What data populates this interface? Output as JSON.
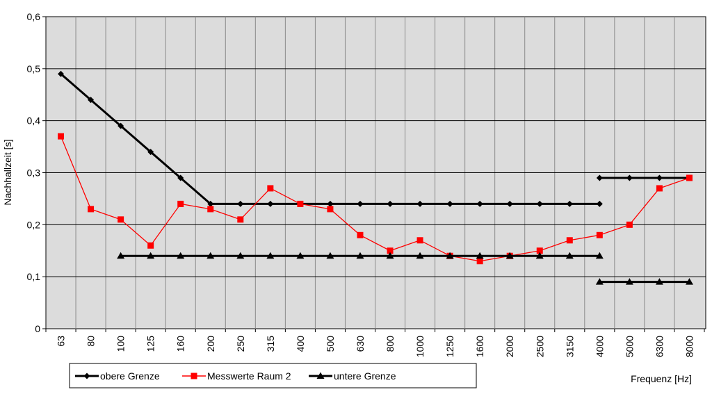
{
  "chart_data": {
    "type": "line",
    "ylabel": "Nachhallzeit [s]",
    "xlabel": "Frequenz [Hz]",
    "ylim": [
      0,
      0.6
    ],
    "yticks": [
      "0",
      "0,1",
      "0,2",
      "0,3",
      "0,4",
      "0,5",
      "0,6"
    ],
    "grid": true,
    "legend_position": "bottom-left",
    "categories": [
      "63",
      "80",
      "100",
      "125",
      "160",
      "200",
      "250",
      "315",
      "400",
      "500",
      "630",
      "800",
      "1000",
      "1250",
      "1600",
      "2000",
      "2500",
      "3150",
      "4000",
      "5000",
      "6300",
      "8000"
    ],
    "series": [
      {
        "name": "obere Grenze",
        "color": "#000000",
        "marker": "diamond",
        "segments": [
          {
            "values": [
              0.49,
              0.44,
              0.39,
              0.34,
              0.29,
              0.24,
              0.24,
              0.24,
              0.24,
              0.24,
              0.24,
              0.24,
              0.24,
              0.24,
              0.24,
              0.24,
              0.24,
              0.24,
              0.24
            ],
            "start_index": 0
          },
          {
            "values": [
              0.29,
              0.29,
              0.29,
              0.29
            ],
            "start_index": 18
          }
        ]
      },
      {
        "name": "Messwerte Raum 2",
        "color": "#ff0000",
        "marker": "square",
        "segments": [
          {
            "values": [
              0.37,
              0.23,
              0.21,
              0.16,
              0.24,
              0.23,
              0.21,
              0.27,
              0.24,
              0.23,
              0.18,
              0.15,
              0.17,
              0.14,
              0.13,
              0.14,
              0.15,
              0.17,
              0.18,
              0.2,
              0.27,
              0.29
            ],
            "start_index": 0
          }
        ]
      },
      {
        "name": "untere Grenze",
        "color": "#000000",
        "marker": "triangle",
        "segments": [
          {
            "values": [
              0.14,
              0.14,
              0.14,
              0.14,
              0.14,
              0.14,
              0.14,
              0.14,
              0.14,
              0.14,
              0.14,
              0.14,
              0.14,
              0.14,
              0.14,
              0.14,
              0.14
            ],
            "start_index": 2
          },
          {
            "values": [
              0.09,
              0.09,
              0.09,
              0.09
            ],
            "start_index": 18
          }
        ]
      }
    ]
  }
}
